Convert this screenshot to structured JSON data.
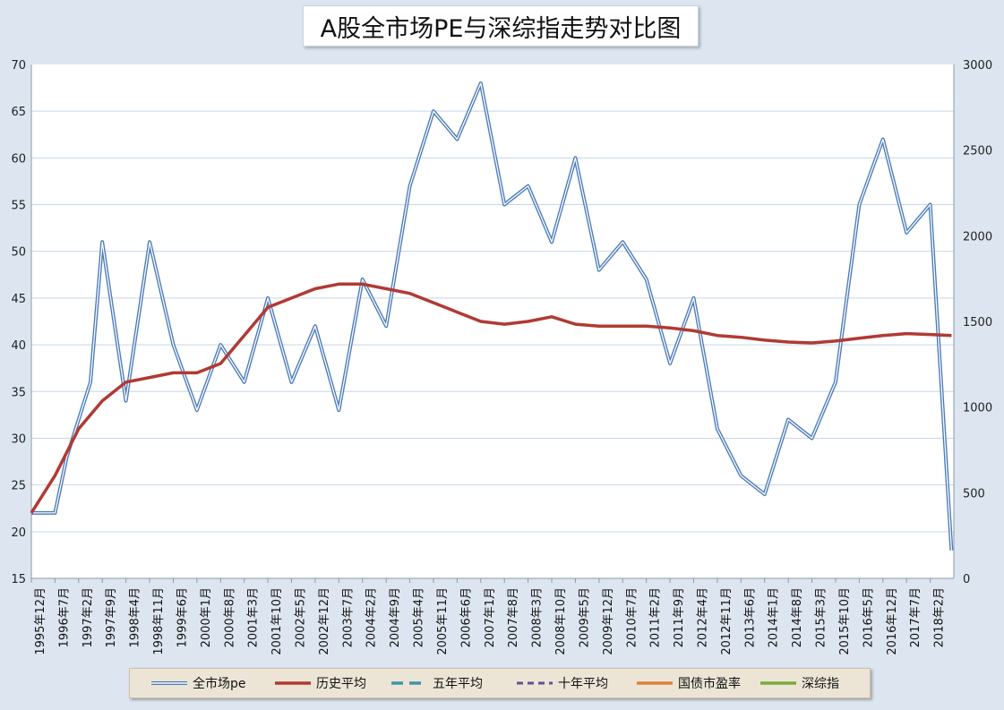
{
  "chart_data": {
    "type": "line",
    "title": "A股全市场PE与深综指走势对比图",
    "xlabel": "",
    "ylabel": "",
    "ylim": [
      15,
      70
    ],
    "y2lim": [
      0,
      3000
    ],
    "yticks": [
      "70",
      "65",
      "60",
      "55",
      "50",
      "45",
      "40",
      "35",
      "30",
      "25",
      "20",
      "15"
    ],
    "y2ticks": [
      "3000",
      "2500",
      "2000",
      "1500",
      "1000",
      "500",
      "0"
    ],
    "xticks": [
      "1995年12月",
      "1996年7月",
      "1997年2月",
      "1997年9月",
      "1998年4月",
      "1998年11月",
      "1999年6月",
      "2000年1月",
      "2000年8月",
      "2001年3月",
      "2001年10月",
      "2002年5月",
      "2002年12月",
      "2003年7月",
      "2004年2月",
      "2004年9月",
      "2005年4月",
      "2005年11月",
      "2006年6月",
      "2007年1月",
      "2007年8月",
      "2008年3月",
      "2008年10月",
      "2009年5月",
      "2009年12月",
      "2010年7月",
      "2011年2月",
      "2011年9月",
      "2012年4月",
      "2012年11月",
      "2013年6月",
      "2014年1月",
      "2014年8月",
      "2015年3月",
      "2015年10月",
      "2016年5月",
      "2016年12月",
      "2017年7月",
      "2018年2月"
    ],
    "grid": true,
    "legend_position": "bottom",
    "series": [
      {
        "name": "全市场pe",
        "axis": "left",
        "color": "#4a7ab8",
        "style": "double",
        "x": [
          0,
          1,
          1.5,
          2.5,
          3,
          4,
          5,
          6,
          7,
          8,
          9,
          10,
          11,
          12,
          13,
          14,
          15,
          16,
          17,
          18,
          19,
          20,
          21,
          22,
          23,
          24,
          25,
          26,
          27,
          28,
          29,
          30,
          31,
          32,
          33,
          34,
          35,
          36,
          37,
          38,
          38.9
        ],
        "values": [
          22,
          22,
          28,
          36,
          51,
          34,
          51,
          40,
          33,
          40,
          36,
          45,
          36,
          42,
          33,
          47,
          42,
          57,
          65,
          62,
          68,
          55,
          57,
          51,
          60,
          48,
          51,
          47,
          38,
          45,
          31,
          26,
          24,
          32,
          30,
          36,
          55,
          62,
          52,
          55,
          18
        ]
      },
      {
        "name": "历史平均",
        "axis": "left",
        "color": "#b03a34",
        "style": "solid",
        "x": [
          0,
          1,
          2,
          3,
          4,
          5,
          6,
          7,
          8,
          9,
          10,
          11,
          12,
          13,
          14,
          15,
          16,
          17,
          18,
          19,
          20,
          21,
          22,
          23,
          24,
          25,
          26,
          27,
          28,
          29,
          30,
          31,
          32,
          33,
          34,
          35,
          36,
          37,
          38,
          38.9
        ],
        "values": [
          22,
          26,
          31,
          34,
          36,
          36.5,
          37,
          37,
          38,
          41,
          44,
          45,
          46,
          46.5,
          46.5,
          46,
          45.5,
          44.5,
          43.5,
          42.5,
          42.2,
          42.5,
          43,
          42.2,
          42,
          42,
          42,
          41.8,
          41.5,
          41,
          40.8,
          40.5,
          40.3,
          40.2,
          40.4,
          40.7,
          41,
          41.2,
          41.1,
          41
        ]
      }
    ]
  },
  "legend": {
    "items": [
      {
        "label": "全市场pe"
      },
      {
        "label": "历史平均"
      },
      {
        "label": "五年平均"
      },
      {
        "label": "十年平均"
      },
      {
        "label": "国债市盈率"
      },
      {
        "label": "深综指"
      }
    ]
  }
}
